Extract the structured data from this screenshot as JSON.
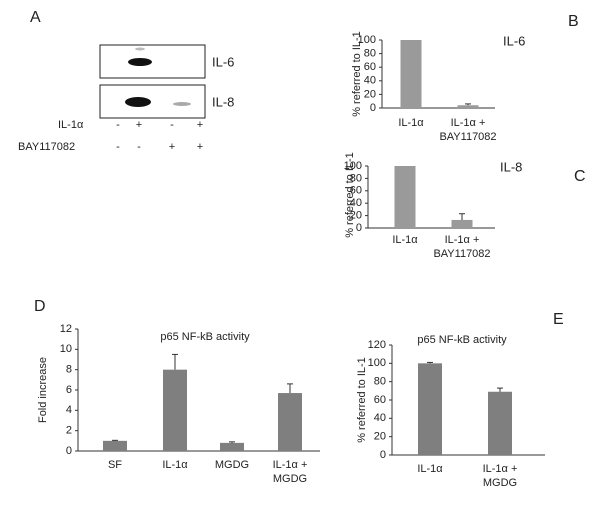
{
  "panel_a": {
    "panel": "A",
    "bands": [
      "IL-6",
      "IL-8"
    ],
    "rows": [
      {
        "name": "IL-1α",
        "signs": [
          "-",
          "+",
          "-",
          "+"
        ]
      },
      {
        "name": "BAY117082",
        "signs": [
          "-",
          "-",
          "+",
          "+"
        ]
      }
    ]
  },
  "chart_data": [
    {
      "type": "bar",
      "panel": "B",
      "title": "IL-6",
      "ylabel": "% referred to IL-1",
      "categories": [
        [
          "IL-1α"
        ],
        [
          "IL-1α +",
          "BAY117082"
        ]
      ],
      "values": [
        100,
        4
      ],
      "errors": [
        null,
        2
      ],
      "color": "#9a9a9a",
      "ylim": [
        0,
        100
      ],
      "yticks": [
        0,
        20,
        40,
        60,
        80,
        100
      ]
    },
    {
      "type": "bar",
      "panel": "C",
      "title": "IL-8",
      "ylabel": "% referred to IL-1",
      "categories": [
        [
          "IL-1α"
        ],
        [
          "IL-1α +",
          "BAY117082"
        ]
      ],
      "values": [
        100,
        13
      ],
      "errors": [
        null,
        10
      ],
      "color": "#9a9a9a",
      "ylim": [
        0,
        100
      ],
      "yticks": [
        0,
        20,
        40,
        60,
        80,
        100
      ]
    },
    {
      "type": "bar",
      "panel": "D",
      "title": "p65 NF-kB activity",
      "ylabel": "Fold increase",
      "categories": [
        [
          "SF"
        ],
        [
          "IL-1α"
        ],
        [
          "MGDG"
        ],
        [
          "IL-1α +",
          "MGDG"
        ]
      ],
      "values": [
        1,
        8,
        0.8,
        5.7
      ],
      "errors": [
        0.05,
        1.5,
        0.1,
        0.9
      ],
      "color": "#7f7f7f",
      "ylim": [
        0,
        12
      ],
      "yticks": [
        0,
        2,
        4,
        6,
        8,
        10,
        12
      ]
    },
    {
      "type": "bar",
      "panel": "E",
      "title": "p65 NF-kB activity",
      "ylabel": "% referred to IL-1",
      "categories": [
        [
          "IL-1α"
        ],
        [
          "IL-1α +",
          "MGDG"
        ]
      ],
      "values": [
        100,
        69
      ],
      "errors": [
        1,
        4
      ],
      "color": "#7f7f7f",
      "ylim": [
        0,
        120
      ],
      "yticks": [
        0,
        20,
        40,
        60,
        80,
        100,
        120
      ]
    }
  ]
}
